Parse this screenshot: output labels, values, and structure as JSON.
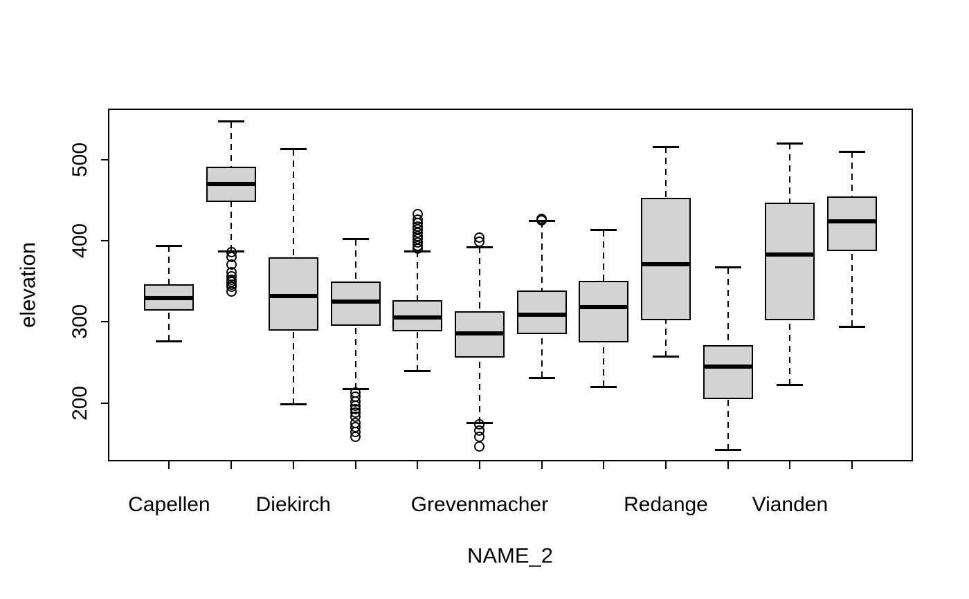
{
  "chart_data": {
    "type": "boxplot",
    "title": "",
    "xlabel": "NAME_2",
    "ylabel": "elevation",
    "grid": false,
    "legend": "none",
    "style": {
      "box_fill": "#d3d3d3",
      "line_color": "#000000",
      "background": "#ffffff",
      "whisker_style": "dashed"
    },
    "y_axis": {
      "ticks": [
        200,
        300,
        400,
        500
      ],
      "usr_min": 128,
      "usr_max": 563
    },
    "x_axis": {
      "n_groups": 12,
      "tick_positions": [
        1,
        2,
        3,
        4,
        5,
        6,
        7,
        8,
        9,
        10,
        11,
        12
      ],
      "labels": [
        {
          "position": 1,
          "text": "Capellen"
        },
        {
          "position": 3,
          "text": "Diekirch"
        },
        {
          "position": 6,
          "text": "Grevenmacher"
        },
        {
          "position": 9,
          "text": "Redange"
        },
        {
          "position": 11,
          "text": "Vianden"
        }
      ]
    },
    "boxes": [
      {
        "position": 1,
        "label": "Capellen",
        "whisker_low": 276,
        "q1": 314,
        "median": 329,
        "q3": 346,
        "whisker_high": 394,
        "outliers": []
      },
      {
        "position": 2,
        "label": "",
        "whisker_low": 387,
        "q1": 448,
        "median": 470,
        "q3": 491,
        "whisker_high": 547,
        "outliers": [
          386,
          380,
          371,
          361,
          356,
          352,
          349,
          346,
          343,
          337
        ]
      },
      {
        "position": 3,
        "label": "Diekirch",
        "whisker_low": 198,
        "q1": 289,
        "median": 332,
        "q3": 380,
        "whisker_high": 513,
        "outliers": []
      },
      {
        "position": 4,
        "label": "",
        "whisker_low": 217,
        "q1": 295,
        "median": 325,
        "q3": 350,
        "whisker_high": 402,
        "outliers": [
          213,
          208,
          202,
          197,
          192,
          188,
          183,
          175,
          170,
          164,
          158
        ]
      },
      {
        "position": 5,
        "label": "",
        "whisker_low": 239,
        "q1": 288,
        "median": 305,
        "q3": 327,
        "whisker_high": 387,
        "outliers": [
          433,
          426,
          422,
          418,
          414,
          410,
          406,
          402,
          398,
          394,
          390
        ]
      },
      {
        "position": 6,
        "label": "Grevenmacher",
        "whisker_low": 175,
        "q1": 256,
        "median": 286,
        "q3": 313,
        "whisker_high": 392,
        "outliers": [
          404,
          399,
          174,
          166,
          158,
          146
        ]
      },
      {
        "position": 7,
        "label": "",
        "whisker_low": 231,
        "q1": 285,
        "median": 309,
        "q3": 339,
        "whisker_high": 424,
        "outliers": [
          427,
          425
        ]
      },
      {
        "position": 8,
        "label": "",
        "whisker_low": 220,
        "q1": 275,
        "median": 318,
        "q3": 351,
        "whisker_high": 413,
        "outliers": []
      },
      {
        "position": 9,
        "label": "Redange",
        "whisker_low": 257,
        "q1": 302,
        "median": 371,
        "q3": 453,
        "whisker_high": 516,
        "outliers": []
      },
      {
        "position": 10,
        "label": "",
        "whisker_low": 142,
        "q1": 205,
        "median": 245,
        "q3": 271,
        "whisker_high": 367,
        "outliers": []
      },
      {
        "position": 11,
        "label": "Vianden",
        "whisker_low": 222,
        "q1": 302,
        "median": 383,
        "q3": 447,
        "whisker_high": 520,
        "outliers": []
      },
      {
        "position": 12,
        "label": "",
        "whisker_low": 294,
        "q1": 387,
        "median": 424,
        "q3": 455,
        "whisker_high": 510,
        "outliers": []
      }
    ]
  }
}
